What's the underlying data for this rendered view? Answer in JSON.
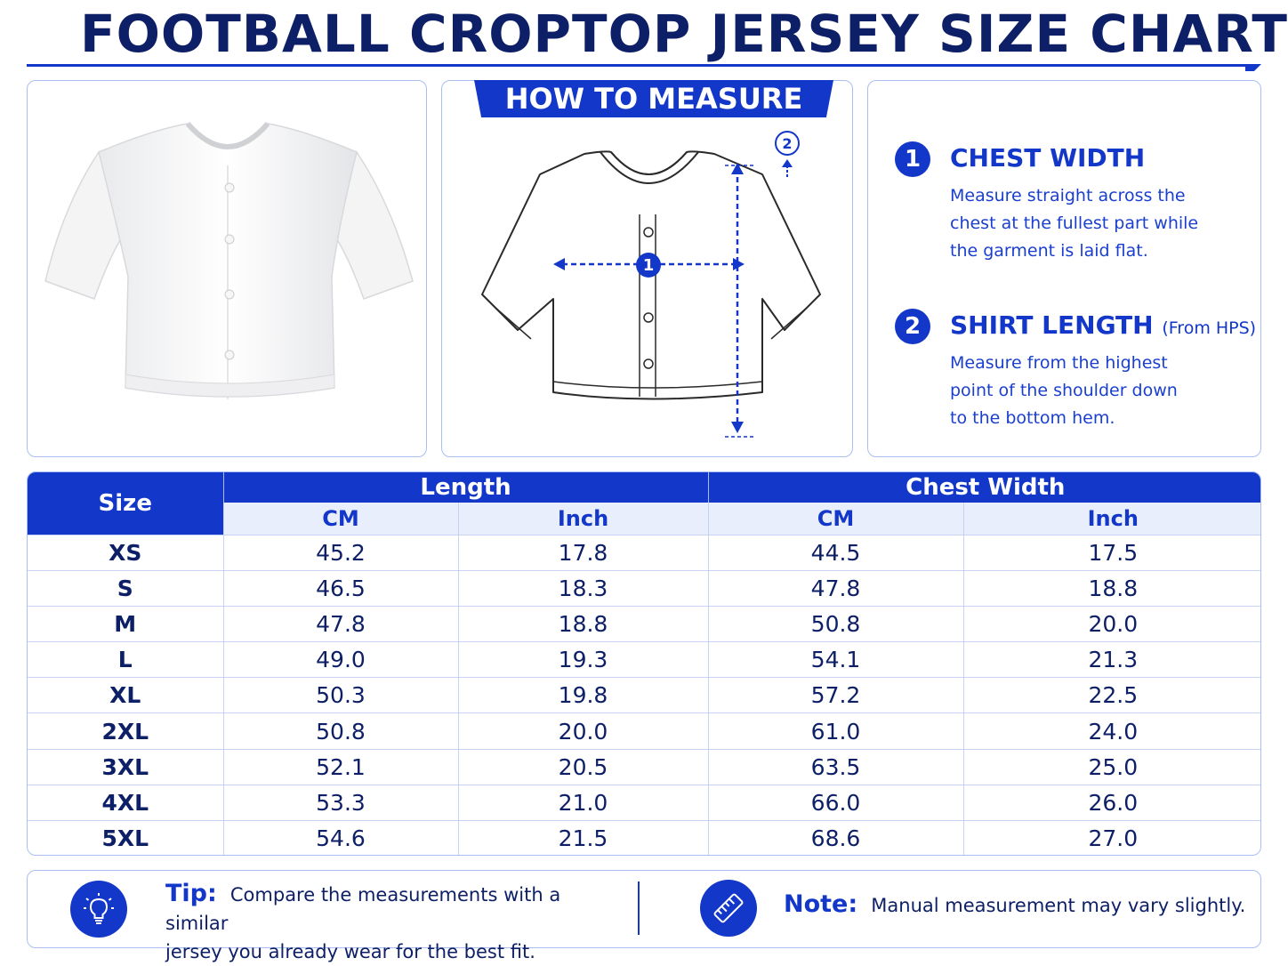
{
  "title": "FOOTBALL CROPTOP JERSEY SIZE CHART",
  "how_to_measure": {
    "heading": "HOW TO MEASURE",
    "markers": [
      "1",
      "2"
    ]
  },
  "measurements": [
    {
      "number": "1",
      "title": "CHEST WIDTH",
      "note": "",
      "lines": [
        "Measure straight across the",
        "chest at the fullest part while",
        "the garment is laid flat."
      ]
    },
    {
      "number": "2",
      "title": "SHIRT LENGTH",
      "note": "(From HPS)",
      "lines": [
        "Measure from the highest",
        "point of the shoulder down",
        "to the bottom hem."
      ]
    }
  ],
  "table": {
    "size_header": "Size",
    "groups": [
      "Length",
      "Chest Width"
    ],
    "units": [
      "CM",
      "Inch",
      "CM",
      "Inch"
    ],
    "rows": [
      [
        "XS",
        "45.2",
        "17.8",
        "44.5",
        "17.5"
      ],
      [
        "S",
        "46.5",
        "18.3",
        "47.8",
        "18.8"
      ],
      [
        "M",
        "47.8",
        "18.8",
        "50.8",
        "20.0"
      ],
      [
        "L",
        "49.0",
        "19.3",
        "54.1",
        "21.3"
      ],
      [
        "XL",
        "50.3",
        "19.8",
        "57.2",
        "22.5"
      ],
      [
        "2XL",
        "50.8",
        "20.0",
        "61.0",
        "24.0"
      ],
      [
        "3XL",
        "52.1",
        "20.5",
        "63.5",
        "25.0"
      ],
      [
        "4XL",
        "53.3",
        "21.0",
        "66.0",
        "26.0"
      ],
      [
        "5XL",
        "54.6",
        "21.5",
        "68.6",
        "27.0"
      ]
    ]
  },
  "footer": {
    "tip_label": "Tip:",
    "tip_line1": "Compare the measurements with a similar",
    "tip_line2": "jersey you already wear for the best fit.",
    "note_label": "Note:",
    "note_text": "Manual measurement may vary slightly."
  },
  "colors": {
    "brand_blue": "#1237c9",
    "navy_text": "#0d1f66",
    "header_tint": "#e9eefc",
    "border": "#a9bff3"
  },
  "icons": [
    "lightbulb-icon",
    "ruler-icon"
  ]
}
